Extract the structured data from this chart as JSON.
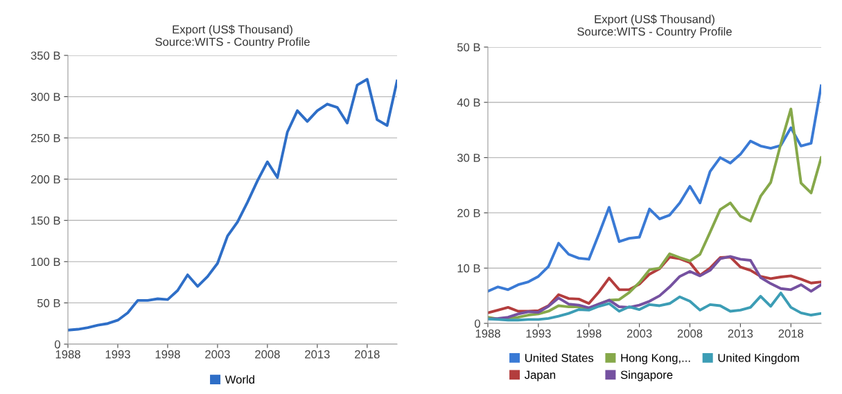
{
  "chart_data": [
    {
      "type": "line",
      "title": "Export (US$ Thousand)",
      "subtitle": "Source:WITS - Country Profile",
      "x": [
        1988,
        1989,
        1990,
        1991,
        1992,
        1993,
        1994,
        1995,
        1996,
        1997,
        1998,
        1999,
        2000,
        2001,
        2002,
        2003,
        2004,
        2005,
        2006,
        2007,
        2008,
        2009,
        2010,
        2011,
        2012,
        2013,
        2014,
        2015,
        2016,
        2017,
        2018,
        2019,
        2020,
        2021
      ],
      "series": [
        {
          "name": "World",
          "color": "#2e6ec7",
          "values": [
            17,
            18,
            20,
            23,
            25,
            29,
            38,
            53,
            53,
            55,
            54,
            65,
            84,
            70,
            82,
            98,
            131,
            148,
            172,
            198,
            221,
            202,
            257,
            283,
            270,
            283,
            291,
            287,
            268,
            314,
            321,
            272,
            265,
            319
          ]
        }
      ],
      "xlim": [
        1988,
        2021
      ],
      "xticks": [
        1988,
        1993,
        1998,
        2003,
        2008,
        2013,
        2018
      ],
      "ylim": [
        0,
        350
      ],
      "yticks": [
        {
          "value": 0,
          "label": "0"
        },
        {
          "value": 50,
          "label": "50 B"
        },
        {
          "value": 100,
          "label": "100 B"
        },
        {
          "value": 150,
          "label": "150 B"
        },
        {
          "value": 200,
          "label": "200 B"
        },
        {
          "value": 250,
          "label": "250 B"
        },
        {
          "value": 300,
          "label": "300 B"
        },
        {
          "value": 350,
          "label": "350 B"
        }
      ],
      "grid": "y",
      "legend": "bottom",
      "marker": "none",
      "line_style": "solid"
    },
    {
      "type": "line",
      "title": "Export (US$ Thousand)",
      "subtitle": "Source:WITS - Country Profile",
      "x": [
        1988,
        1989,
        1990,
        1991,
        1992,
        1993,
        1994,
        1995,
        1996,
        1997,
        1998,
        1999,
        2000,
        2001,
        2002,
        2003,
        2004,
        2005,
        2006,
        2007,
        2008,
        2009,
        2010,
        2011,
        2012,
        2013,
        2014,
        2015,
        2016,
        2017,
        2018,
        2019,
        2020,
        2021
      ],
      "series": [
        {
          "name": "United States",
          "color": "#3a7ad5",
          "values": [
            5.8,
            6.6,
            6.1,
            7.0,
            7.5,
            8.5,
            10.3,
            14.5,
            12.5,
            11.8,
            11.6,
            16.2,
            21.0,
            14.8,
            15.4,
            15.6,
            20.7,
            18.9,
            19.6,
            21.8,
            24.8,
            21.8,
            27.5,
            30.0,
            29.0,
            30.6,
            33.0,
            32.1,
            31.7,
            32.2,
            35.4,
            32.1,
            32.6,
            43.0
          ]
        },
        {
          "name": "Japan",
          "color": "#b33d3d",
          "values": [
            1.9,
            2.4,
            2.9,
            2.2,
            2.2,
            2.3,
            3.2,
            5.2,
            4.5,
            4.4,
            3.6,
            5.7,
            8.2,
            6.1,
            6.1,
            7.1,
            8.9,
            9.9,
            12.0,
            11.7,
            11.0,
            8.7,
            10.0,
            11.9,
            12.0,
            10.2,
            9.6,
            8.5,
            8.1,
            8.4,
            8.6,
            8.0,
            7.3,
            7.5
          ]
        },
        {
          "name": "Hong Kong,...",
          "color": "#86a84a",
          "values": [
            1.1,
            0.8,
            1.0,
            1.1,
            1.5,
            1.7,
            2.2,
            3.2,
            3.0,
            3.0,
            2.7,
            3.5,
            4.2,
            4.3,
            5.6,
            7.4,
            9.7,
            10.0,
            12.6,
            11.9,
            11.3,
            12.5,
            16.5,
            20.6,
            21.8,
            19.4,
            18.5,
            23.0,
            25.5,
            32.5,
            38.8,
            25.4,
            23.6,
            30.0
          ]
        },
        {
          "name": "Singapore",
          "color": "#7551a0",
          "values": [
            0.8,
            0.9,
            1.1,
            1.7,
            2.1,
            2.0,
            3.1,
            4.6,
            3.5,
            3.3,
            2.8,
            3.5,
            4.2,
            3.0,
            2.9,
            3.3,
            4.0,
            5.0,
            6.6,
            8.5,
            9.4,
            8.6,
            9.6,
            11.7,
            12.1,
            11.6,
            11.4,
            8.3,
            7.2,
            6.3,
            6.1,
            7.0,
            5.8,
            7.0
          ]
        },
        {
          "name": "United Kingdom",
          "color": "#3c9db5",
          "values": [
            0.8,
            0.7,
            0.6,
            0.6,
            0.7,
            0.7,
            0.9,
            1.3,
            1.8,
            2.5,
            2.4,
            3.1,
            3.6,
            2.2,
            3.0,
            2.5,
            3.4,
            3.2,
            3.6,
            4.8,
            4.0,
            2.4,
            3.4,
            3.2,
            2.2,
            2.4,
            2.9,
            4.9,
            3.1,
            5.5,
            2.9,
            1.9,
            1.5,
            1.8
          ]
        }
      ],
      "xlim": [
        1988,
        2021
      ],
      "xticks": [
        1988,
        1993,
        1998,
        2003,
        2008,
        2013,
        2018
      ],
      "ylim": [
        0,
        50
      ],
      "yticks": [
        {
          "value": 0,
          "label": "0"
        },
        {
          "value": 10,
          "label": "10 B"
        },
        {
          "value": 20,
          "label": "20 B"
        },
        {
          "value": 30,
          "label": "30 B"
        },
        {
          "value": 40,
          "label": "40 B"
        },
        {
          "value": 50,
          "label": "50 B"
        }
      ],
      "grid": "y",
      "legend": "bottom",
      "marker": "none",
      "line_style": "solid"
    }
  ]
}
